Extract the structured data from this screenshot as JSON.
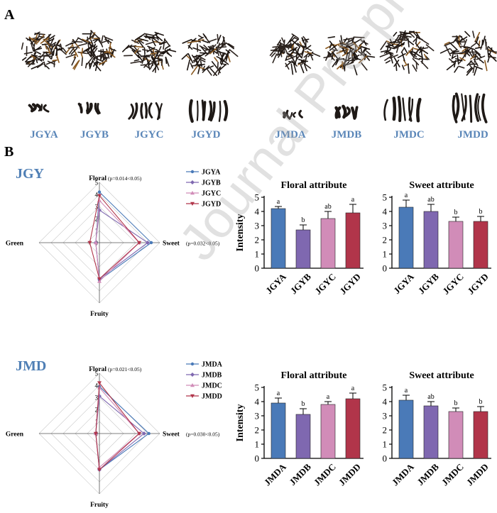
{
  "panel_a_label": "A",
  "panel_b_label": "B",
  "samples_jgy": [
    "JGYA",
    "JGYB",
    "JGYC",
    "JGYD"
  ],
  "samples_jmd": [
    "JMDA",
    "JMDB",
    "JMDC",
    "JMDD"
  ],
  "group_jgy": "JGY",
  "group_jmd": "JMD",
  "watermark": "Journal Pre-proof",
  "colors": {
    "A": "#4a7ab8",
    "B": "#7f68b0",
    "C": "#d18cb8",
    "D": "#b1354a",
    "label_blue": "#5a86b8"
  },
  "chart_data": [
    {
      "type": "radar",
      "group": "JGY",
      "axes": [
        "Floral",
        "Sweet",
        "Fruity",
        "Green"
      ],
      "axis_notes": {
        "Floral": "(p=0.014<0.05)",
        "Sweet": "(p=0.032<0.05)"
      },
      "scale_ticks": [
        "0",
        "1",
        "2",
        "3",
        "4",
        "5"
      ],
      "range": [
        0,
        5
      ],
      "series": [
        {
          "name": "JGYA",
          "values": [
            4.2,
            4.3,
            3.1,
            0.3
          ]
        },
        {
          "name": "JGYB",
          "values": [
            2.7,
            4.0,
            3.0,
            0.3
          ]
        },
        {
          "name": "JGYC",
          "values": [
            3.5,
            3.3,
            3.2,
            0.3
          ]
        },
        {
          "name": "JGYD",
          "values": [
            3.9,
            3.3,
            3.0,
            0.8
          ]
        }
      ]
    },
    {
      "type": "bar",
      "title": "Floral attribute",
      "ylabel": "Intensity",
      "categories": [
        "JGYA",
        "JGYB",
        "JGYC",
        "JGYD"
      ],
      "values": [
        4.2,
        2.7,
        3.5,
        3.9
      ],
      "errors": [
        0.15,
        0.35,
        0.5,
        0.6
      ],
      "letters": [
        "a",
        "b",
        "ab",
        "a"
      ],
      "ylim": [
        0,
        5
      ],
      "yticks": [
        "0",
        "1",
        "2",
        "3",
        "4",
        "5"
      ]
    },
    {
      "type": "bar",
      "title": "Sweet attribute",
      "ylabel": "",
      "categories": [
        "JGYA",
        "JGYB",
        "JGYC",
        "JGYD"
      ],
      "values": [
        4.3,
        4.0,
        3.3,
        3.3
      ],
      "errors": [
        0.5,
        0.5,
        0.3,
        0.35
      ],
      "letters": [
        "a",
        "ab",
        "b",
        "b"
      ],
      "ylim": [
        0,
        5
      ],
      "yticks": [
        "0",
        "1",
        "2",
        "3",
        "4",
        "5"
      ]
    },
    {
      "type": "radar",
      "group": "JMD",
      "axes": [
        "Floral",
        "Sweet",
        "Fruity",
        "Green"
      ],
      "axis_notes": {
        "Floral": "(p=0.021<0.05)",
        "Sweet": "(p=0.030<0.05)"
      },
      "scale_ticks": [
        "0",
        "1",
        "2",
        "3",
        "4",
        "5"
      ],
      "range": [
        0,
        5
      ],
      "series": [
        {
          "name": "JMDA",
          "values": [
            3.9,
            4.1,
            3.0,
            0.3
          ]
        },
        {
          "name": "JMDB",
          "values": [
            3.1,
            3.7,
            3.0,
            0.3
          ]
        },
        {
          "name": "JMDC",
          "values": [
            3.8,
            3.3,
            2.8,
            0.3
          ]
        },
        {
          "name": "JMDD",
          "values": [
            4.2,
            3.3,
            3.0,
            0.3
          ]
        }
      ]
    },
    {
      "type": "bar",
      "title": "Floral attribute",
      "ylabel": "Intensity",
      "categories": [
        "JMDA",
        "JMDB",
        "JMDC",
        "JMDD"
      ],
      "values": [
        3.9,
        3.1,
        3.8,
        4.2
      ],
      "errors": [
        0.35,
        0.4,
        0.2,
        0.4
      ],
      "letters": [
        "a",
        "b",
        "a",
        "a"
      ],
      "ylim": [
        0,
        5
      ],
      "yticks": [
        "0",
        "1",
        "2",
        "3",
        "4",
        "5"
      ]
    },
    {
      "type": "bar",
      "title": "Sweet attribute",
      "ylabel": "",
      "categories": [
        "JMDA",
        "JMDB",
        "JMDC",
        "JMDD"
      ],
      "values": [
        4.1,
        3.7,
        3.3,
        3.3
      ],
      "errors": [
        0.35,
        0.3,
        0.25,
        0.35
      ],
      "letters": [
        "a",
        "ab",
        "b",
        "b"
      ],
      "ylim": [
        0,
        5
      ],
      "yticks": [
        "0",
        "1",
        "2",
        "3",
        "4",
        "5"
      ]
    }
  ]
}
